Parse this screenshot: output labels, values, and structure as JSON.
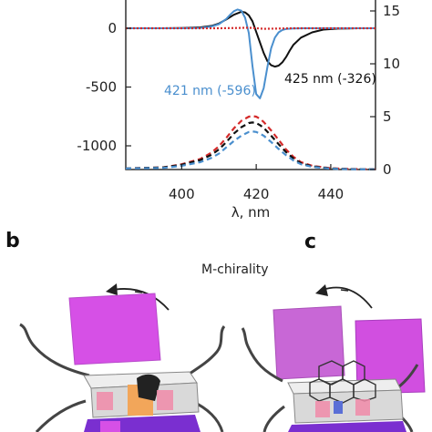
{
  "chart_data": {
    "type": "line",
    "xlabel": "λ, nm",
    "ylabel": "",
    "y2label": "",
    "xlim": [
      385,
      452
    ],
    "ylim": [
      -1040,
      170
    ],
    "y2lim": [
      0,
      17.6
    ],
    "x_ticks": [
      400,
      420,
      440
    ],
    "x_tick_labels": [
      "400",
      "420",
      "440"
    ],
    "y_ticks": [
      0,
      -500,
      -1000
    ],
    "y_tick_labels": [
      "0",
      "-500",
      "-1000"
    ],
    "y2_ticks": [
      15,
      10,
      5,
      0
    ],
    "y2_tick_labels": [
      "15",
      "10",
      "5",
      "0"
    ],
    "series": [
      {
        "axis": "left",
        "style": "solid",
        "color": "#111111",
        "x": [
          385,
          395,
          400,
          405,
          408,
          410,
          412,
          414,
          416,
          417,
          418,
          419,
          420,
          421,
          422,
          423,
          424,
          425,
          426,
          427,
          428,
          429,
          430,
          432,
          435,
          438,
          442,
          447,
          452
        ],
        "y": [
          0,
          0,
          2,
          8,
          20,
          40,
          75,
          115,
          140,
          135,
          110,
          60,
          -30,
          -120,
          -210,
          -280,
          -315,
          -326,
          -318,
          -290,
          -245,
          -190,
          -140,
          -80,
          -35,
          -12,
          -3,
          0,
          0
        ]
      },
      {
        "axis": "left",
        "style": "solid",
        "color": "#4a8fce",
        "x": [
          385,
          400,
          405,
          408,
          410,
          412,
          413,
          414,
          415,
          416,
          417,
          418,
          419,
          420,
          421,
          422,
          423,
          424,
          425,
          426,
          427,
          428,
          430,
          433,
          438,
          445,
          452
        ],
        "y": [
          0,
          0,
          3,
          15,
          35,
          80,
          115,
          145,
          160,
          150,
          90,
          -40,
          -320,
          -560,
          -596,
          -510,
          -330,
          -170,
          -80,
          -35,
          -15,
          -6,
          -2,
          0,
          0,
          0,
          0
        ]
      },
      {
        "axis": "left",
        "style": "dotted",
        "color": "#d42a2a",
        "x": [
          385,
          410,
          415,
          418,
          420,
          422,
          425,
          430,
          452
        ],
        "y": [
          0,
          0,
          2,
          5,
          0,
          -5,
          -3,
          0,
          0
        ]
      },
      {
        "axis": "right",
        "style": "dashed",
        "color": "#d42a2a",
        "x": [
          385,
          395,
          400,
          405,
          408,
          410,
          412,
          414,
          416,
          418,
          419,
          420,
          421,
          422,
          424,
          426,
          428,
          430,
          432,
          435,
          440,
          445,
          452
        ],
        "y": [
          0.1,
          0.2,
          0.5,
          1.0,
          1.6,
          2.2,
          3.0,
          3.9,
          4.6,
          5.0,
          5.05,
          5.0,
          4.8,
          4.5,
          3.7,
          2.8,
          1.9,
          1.2,
          0.7,
          0.35,
          0.12,
          0.05,
          0.02
        ]
      },
      {
        "axis": "right",
        "style": "dashed",
        "color": "#111111",
        "x": [
          385,
          395,
          400,
          405,
          408,
          410,
          412,
          414,
          416,
          418,
          419,
          420,
          421,
          422,
          424,
          426,
          428,
          430,
          432,
          435,
          440,
          445,
          452
        ],
        "y": [
          0.1,
          0.2,
          0.45,
          0.9,
          1.4,
          1.9,
          2.6,
          3.4,
          4.0,
          4.4,
          4.45,
          4.4,
          4.2,
          3.95,
          3.2,
          2.4,
          1.65,
          1.05,
          0.6,
          0.3,
          0.1,
          0.04,
          0.02
        ]
      },
      {
        "axis": "right",
        "style": "dashed",
        "color": "#4a8fce",
        "x": [
          385,
          395,
          400,
          405,
          408,
          410,
          412,
          414,
          416,
          418,
          419,
          420,
          421,
          422,
          424,
          426,
          428,
          430,
          432,
          435,
          440,
          445,
          452
        ],
        "y": [
          0.1,
          0.15,
          0.35,
          0.7,
          1.1,
          1.5,
          2.1,
          2.7,
          3.2,
          3.55,
          3.6,
          3.55,
          3.4,
          3.2,
          2.6,
          1.95,
          1.35,
          0.85,
          0.5,
          0.25,
          0.08,
          0.03,
          0.02
        ]
      }
    ],
    "annotations": [
      {
        "text": "421 nm (-596)",
        "color": "#4a8fce"
      },
      {
        "text": "425 nm (-326)",
        "color": "#111111"
      }
    ]
  },
  "panels": {
    "b_label": "b",
    "c_label": "c",
    "chirality_label": "M-chirality"
  },
  "colors": {
    "magenta_face": "#d650e6",
    "magenta_dark": "#b030c8",
    "purple": "#7a2fd0",
    "grey_frame": "#d9d9d9",
    "pink_tag": "#f08aa8",
    "orange": "#f2a65a"
  }
}
